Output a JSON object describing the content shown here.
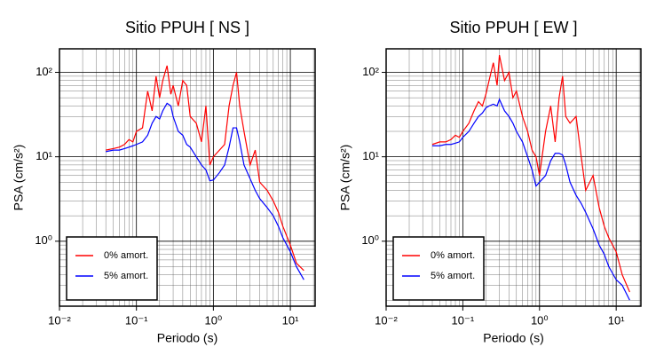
{
  "chart_data": [
    {
      "type": "line",
      "title": "Sitio PPUH [ NS ]",
      "xlabel": "Periodo (s)",
      "ylabel": "PSA (cm/s²)",
      "xscale": "log",
      "yscale": "log",
      "grid": true,
      "legend": "lower left",
      "xlim": [
        0.01,
        21
      ],
      "ylim": [
        0.17,
        190
      ],
      "xticks": [
        {
          "value": 0.01,
          "label": "10⁻²"
        },
        {
          "value": 0.1,
          "label": "10⁻¹"
        },
        {
          "value": 1,
          "label": "10⁰"
        },
        {
          "value": 10,
          "label": "10¹"
        }
      ],
      "yticks": [
        {
          "value": 1,
          "label": "10⁰"
        },
        {
          "value": 10,
          "label": "10¹"
        },
        {
          "value": 100,
          "label": "10²"
        }
      ],
      "x": [
        0.04,
        0.05,
        0.06,
        0.07,
        0.08,
        0.09,
        0.1,
        0.12,
        0.14,
        0.16,
        0.18,
        0.2,
        0.22,
        0.25,
        0.28,
        0.3,
        0.35,
        0.4,
        0.45,
        0.5,
        0.6,
        0.7,
        0.8,
        0.9,
        1.0,
        1.2,
        1.4,
        1.6,
        1.8,
        2.0,
        2.2,
        2.5,
        3,
        3.5,
        4,
        5,
        6,
        7,
        8,
        10,
        12,
        15
      ],
      "series": [
        {
          "name": "0% amort.",
          "color": "#ff0000",
          "values": [
            12,
            12.5,
            13,
            14,
            16,
            15,
            20,
            22,
            60,
            35,
            90,
            50,
            80,
            120,
            55,
            70,
            40,
            80,
            70,
            30,
            25,
            15,
            40,
            8,
            10,
            12,
            14,
            40,
            70,
            100,
            40,
            20,
            8,
            12,
            5,
            4,
            3,
            2.2,
            1.5,
            0.9,
            0.55,
            0.45
          ]
        },
        {
          "name": "5% amort.",
          "color": "#0000ff",
          "values": [
            11.5,
            12,
            12,
            12.5,
            13,
            13.5,
            14,
            15,
            18,
            25,
            30,
            28,
            35,
            43,
            40,
            30,
            20,
            18,
            14,
            13,
            10,
            8,
            7,
            5.2,
            5.3,
            6.5,
            8,
            13,
            22,
            22,
            15,
            8,
            5.5,
            4,
            3.2,
            2.5,
            2.0,
            1.5,
            1.1,
            0.75,
            0.5,
            0.35
          ]
        }
      ]
    },
    {
      "type": "line",
      "title": "Sitio PPUH [ EW ]",
      "xlabel": "Periodo (s)",
      "ylabel": "PSA (cm/s²)",
      "xscale": "log",
      "yscale": "log",
      "grid": true,
      "legend": "lower left",
      "xlim": [
        0.01,
        21
      ],
      "ylim": [
        0.17,
        190
      ],
      "xticks": [
        {
          "value": 0.01,
          "label": "10⁻²"
        },
        {
          "value": 0.1,
          "label": "10⁻¹"
        },
        {
          "value": 1,
          "label": "10⁰"
        },
        {
          "value": 10,
          "label": "10¹"
        }
      ],
      "yticks": [
        {
          "value": 1,
          "label": "10⁰"
        },
        {
          "value": 10,
          "label": "10¹"
        },
        {
          "value": 100,
          "label": "10²"
        }
      ],
      "x": [
        0.04,
        0.05,
        0.06,
        0.07,
        0.08,
        0.09,
        0.1,
        0.12,
        0.14,
        0.16,
        0.18,
        0.2,
        0.22,
        0.25,
        0.28,
        0.3,
        0.35,
        0.4,
        0.45,
        0.5,
        0.6,
        0.7,
        0.8,
        0.9,
        1.0,
        1.2,
        1.4,
        1.6,
        1.8,
        2.0,
        2.2,
        2.5,
        3,
        3.5,
        4,
        5,
        6,
        7,
        8,
        10,
        12,
        15
      ],
      "series": [
        {
          "name": "0% amort.",
          "color": "#ff0000",
          "values": [
            14,
            15,
            15,
            16,
            18,
            17,
            20,
            25,
            35,
            45,
            40,
            55,
            80,
            130,
            70,
            160,
            80,
            100,
            50,
            60,
            30,
            20,
            12,
            10,
            6,
            20,
            40,
            15,
            50,
            90,
            30,
            25,
            30,
            10,
            4,
            6,
            2.5,
            1.5,
            1.1,
            0.75,
            0.4,
            0.25
          ]
        },
        {
          "name": "5% amort.",
          "color": "#0000ff",
          "values": [
            13.5,
            13.5,
            14,
            14,
            14.5,
            15,
            17,
            20,
            25,
            30,
            33,
            38,
            40,
            42,
            40,
            48,
            35,
            30,
            25,
            20,
            15,
            10,
            7,
            4.5,
            5,
            6,
            9,
            11,
            11,
            10.5,
            8,
            5,
            3.5,
            2.8,
            2.2,
            1.4,
            0.9,
            0.7,
            0.5,
            0.35,
            0.3,
            0.2
          ]
        }
      ]
    }
  ]
}
